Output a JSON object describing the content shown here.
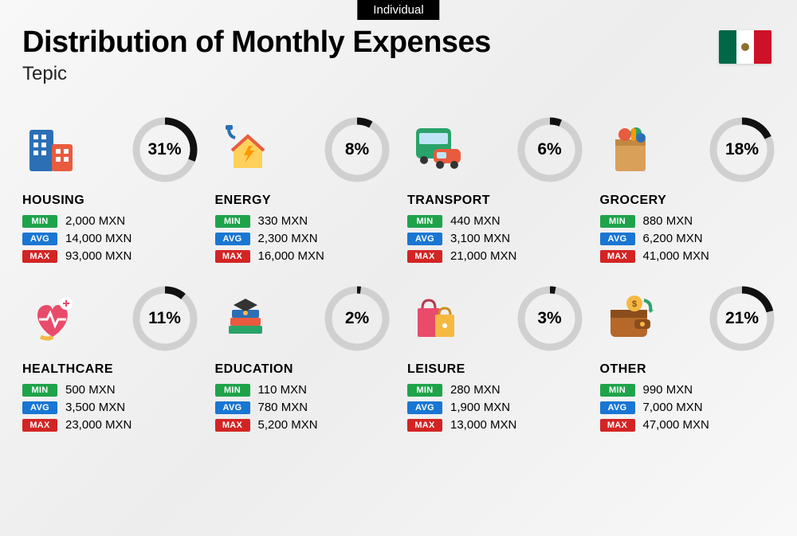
{
  "tag": "Individual",
  "title": "Distribution of Monthly Expenses",
  "subtitle": "Tepic",
  "currency": "MXN",
  "labels": {
    "min": "MIN",
    "avg": "AVG",
    "max": "MAX"
  },
  "colors": {
    "min_badge": "#1fa34a",
    "avg_badge": "#1976d2",
    "max_badge": "#d32424",
    "donut_bg": "#d0d0d0",
    "donut_fg": "#111111",
    "text": "#000000",
    "background": "#f5f5f5"
  },
  "donut": {
    "diameter": 82,
    "stroke_width": 9
  },
  "flag": {
    "left": "#006847",
    "center": "#ffffff",
    "right": "#ce1126"
  },
  "categories": [
    {
      "key": "housing",
      "name": "HOUSING",
      "percent": 31,
      "min": "2,000",
      "avg": "14,000",
      "max": "93,000",
      "icon": "buildings-icon"
    },
    {
      "key": "energy",
      "name": "ENERGY",
      "percent": 8,
      "min": "330",
      "avg": "2,300",
      "max": "16,000",
      "icon": "energy-house-icon"
    },
    {
      "key": "transport",
      "name": "TRANSPORT",
      "percent": 6,
      "min": "440",
      "avg": "3,100",
      "max": "21,000",
      "icon": "bus-car-icon"
    },
    {
      "key": "grocery",
      "name": "GROCERY",
      "percent": 18,
      "min": "880",
      "avg": "6,200",
      "max": "41,000",
      "icon": "grocery-bag-icon"
    },
    {
      "key": "healthcare",
      "name": "HEALTHCARE",
      "percent": 11,
      "min": "500",
      "avg": "3,500",
      "max": "23,000",
      "icon": "heart-health-icon"
    },
    {
      "key": "education",
      "name": "EDUCATION",
      "percent": 2,
      "min": "110",
      "avg": "780",
      "max": "5,200",
      "icon": "books-cap-icon"
    },
    {
      "key": "leisure",
      "name": "LEISURE",
      "percent": 3,
      "min": "280",
      "avg": "1,900",
      "max": "13,000",
      "icon": "shopping-bags-icon"
    },
    {
      "key": "other",
      "name": "OTHER",
      "percent": 21,
      "min": "990",
      "avg": "7,000",
      "max": "47,000",
      "icon": "wallet-icon"
    }
  ]
}
